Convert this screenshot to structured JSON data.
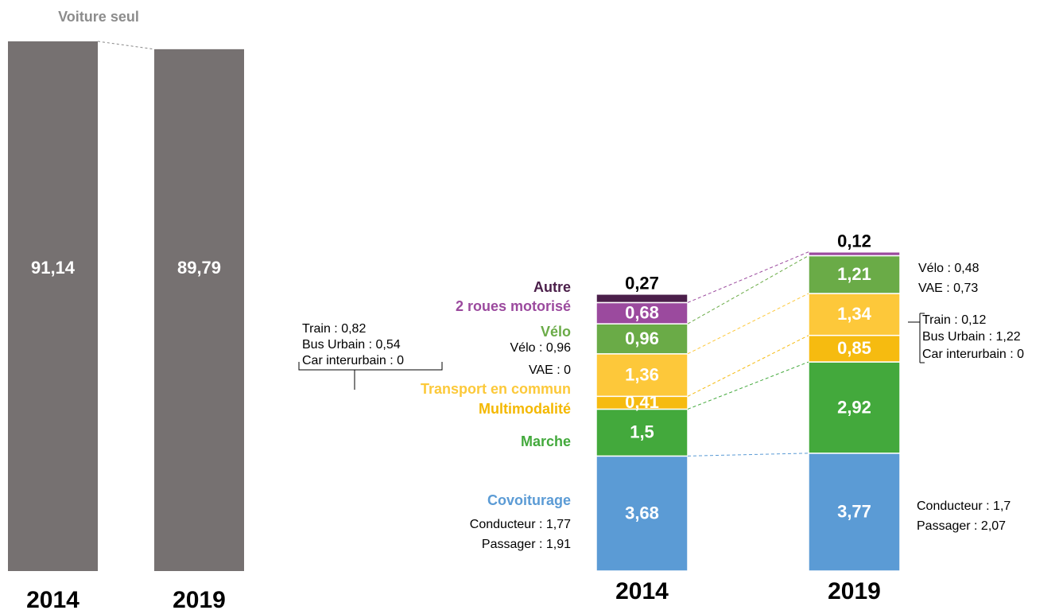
{
  "chart_data": [
    {
      "type": "bar",
      "title": "Voiture seul",
      "categories": [
        "2014",
        "2019"
      ],
      "values": [
        91.14,
        89.79
      ],
      "value_labels": [
        "91,14",
        "89,79"
      ],
      "color": "#767171"
    },
    {
      "type": "stacked_bar",
      "categories": [
        "2014",
        "2019"
      ],
      "series": [
        {
          "name": "Covoiturage",
          "color": "#5b9bd5",
          "values": [
            3.68,
            3.77
          ],
          "value_labels": [
            "3,68",
            "3,77"
          ]
        },
        {
          "name": "Marche",
          "color": "#43a93c",
          "values": [
            1.5,
            2.92
          ],
          "value_labels": [
            "1,5",
            "2,92"
          ]
        },
        {
          "name": "Multimodalité",
          "color": "#f6bb10",
          "values": [
            0.41,
            0.85
          ],
          "value_labels": [
            "0,41",
            "0,85"
          ]
        },
        {
          "name": "Transport en commun",
          "color": "#fdc83a",
          "values": [
            1.36,
            1.34
          ],
          "value_labels": [
            "1,36",
            "1,34"
          ]
        },
        {
          "name": "Vélo",
          "color": "#6aab47",
          "values": [
            0.96,
            1.21
          ],
          "value_labels": [
            "0,96",
            "1,21"
          ]
        },
        {
          "name": "2 roues motorisé",
          "color": "#9b4a9e",
          "values": [
            0.68,
            0.12
          ],
          "value_labels": [
            "0,68",
            "0,12"
          ]
        },
        {
          "name": "Autre",
          "color": "#4b1f4a",
          "values": [
            0.27,
            null
          ],
          "value_labels": [
            "0,27",
            null
          ]
        }
      ],
      "details": [
        [
          "Train : 0,82",
          "Bus Urbain : 0,54",
          "Car interurbain : 0"
        ],
        [
          "Vélo : 0,96",
          "VAE : 0"
        ],
        [
          "Conducteur : 1,77",
          "Passager : 1,91"
        ],
        [
          "Vélo : 0,48",
          "VAE : 0,73"
        ],
        [
          "Train : 0,12",
          "Bus Urbain : 1,22",
          "Car interurbain : 0"
        ],
        [
          "Conducteur : 1,7",
          "Passager : 2,07"
        ]
      ]
    }
  ]
}
